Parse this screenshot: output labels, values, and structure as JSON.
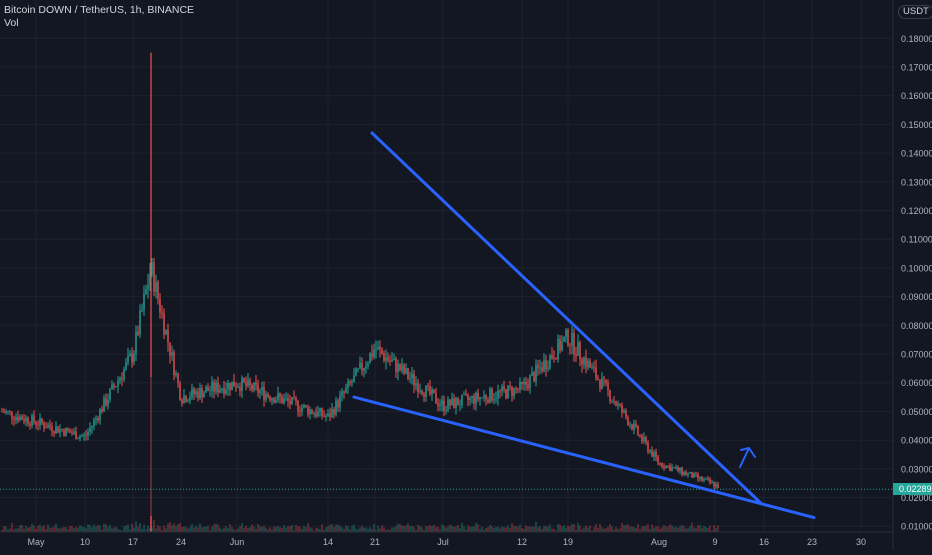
{
  "header": {
    "symbol_line": "Bitcoin DOWN / TetherUS, 1h, BINANCE",
    "volume_label": "Vol"
  },
  "currency_badge": "USDT",
  "last_price_label": "0.02289",
  "colors": {
    "background": "#131722",
    "grid": "#1e222d",
    "up": "#26a69a",
    "down": "#ef5350",
    "trendline": "#2962ff",
    "text": "#b2b5be"
  },
  "chart_data": {
    "type": "candlestick",
    "title": "Bitcoin DOWN / TetherUS, 1h, BINANCE",
    "x_tick_labels": [
      "May",
      "10",
      "17",
      "24",
      "Jun",
      "14",
      "21",
      "Jul",
      "12",
      "19",
      "Aug",
      "9",
      "16",
      "23",
      "30"
    ],
    "y_tick_labels": [
      "0.18000",
      "0.17000",
      "0.16000",
      "0.15000",
      "0.14000",
      "0.13000",
      "0.12000",
      "0.11000",
      "0.10000",
      "0.09000",
      "0.08000",
      "0.07000",
      "0.06000",
      "0.05000",
      "0.04000",
      "0.03000",
      "0.02000",
      "0.01000"
    ],
    "y_range": [
      0.0,
      0.185
    ],
    "last_price": 0.02289,
    "price_path": [
      {
        "x": "May",
        "y": 0.05
      },
      {
        "x": "10",
        "y": 0.041
      },
      {
        "x": "17",
        "y": 0.07
      },
      {
        "x": "17",
        "y": 0.1
      },
      {
        "x": "24",
        "y": 0.055
      },
      {
        "x": "Jun",
        "y": 0.06
      },
      {
        "x": "14",
        "y": 0.048
      },
      {
        "x": "21",
        "y": 0.072
      },
      {
        "x": "Jul",
        "y": 0.052
      },
      {
        "x": "12",
        "y": 0.058
      },
      {
        "x": "19",
        "y": 0.076
      },
      {
        "x": "Aug",
        "y": 0.032
      },
      {
        "x": "9",
        "y": 0.024
      }
    ],
    "notable_spike_high": 0.175,
    "trendlines": [
      {
        "name": "upper",
        "from": {
          "x": "21",
          "y": 0.147
        },
        "to": {
          "x": "16",
          "y": 0.018
        }
      },
      {
        "name": "lower",
        "from": {
          "x": "14",
          "y": 0.055
        },
        "to": {
          "x": "23",
          "y": 0.013
        }
      }
    ],
    "annotation": "arrow-up"
  }
}
